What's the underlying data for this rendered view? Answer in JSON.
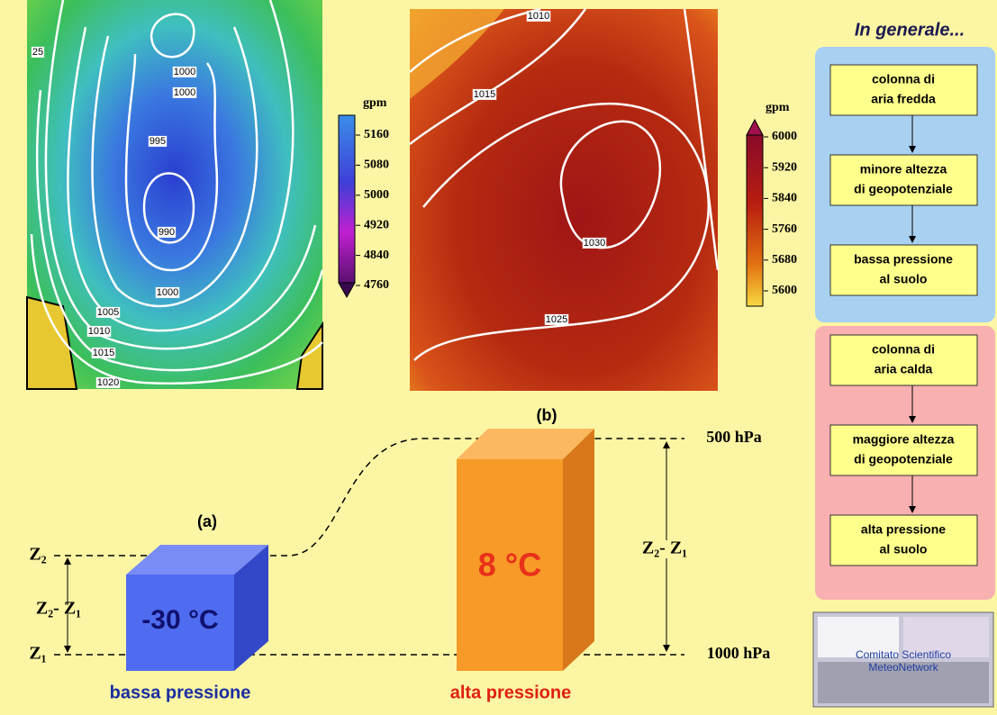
{
  "map_low": {
    "contours": [
      "25",
      "1000",
      "1000",
      "995",
      "990",
      "1000",
      "1005",
      "1010",
      "1015",
      "1020"
    ],
    "colorbar": {
      "unit": "gpm",
      "ticks": [
        "5160",
        "5080",
        "5000",
        "4920",
        "4840",
        "4760"
      ]
    }
  },
  "map_high": {
    "contours": [
      "1010",
      "1015",
      "1030",
      "1025"
    ],
    "colorbar": {
      "unit": "gpm",
      "ticks": [
        "6000",
        "5920",
        "5840",
        "5760",
        "5680",
        "5600"
      ]
    }
  },
  "diagram": {
    "label_a": "(a)",
    "label_b": "(b)",
    "level_top": "500 hPa",
    "level_bottom": "1000 hPa",
    "z2": "Z₂",
    "z1": "Z₁",
    "dz_left": "Z₂- Z₁",
    "dz_right": "Z₂- Z₁",
    "cold_temp": "-30 °C",
    "cold_caption": "bassa pressione",
    "warm_temp": "8 °C",
    "warm_caption": "alta pressione"
  },
  "sidebar": {
    "title": "In generale...",
    "cold_steps": [
      [
        "colonna di",
        "aria fredda"
      ],
      [
        "minore altezza",
        "di geopotenziale"
      ],
      [
        "bassa pressione",
        "al suolo"
      ]
    ],
    "warm_steps": [
      [
        "colonna di",
        "aria calda"
      ],
      [
        "maggiore altezza",
        "di geopotenziale"
      ],
      [
        "alta pressione",
        "al suolo"
      ]
    ]
  },
  "logo": {
    "line1": "Comitato Scientifico",
    "line2": "MeteoNetwork"
  }
}
